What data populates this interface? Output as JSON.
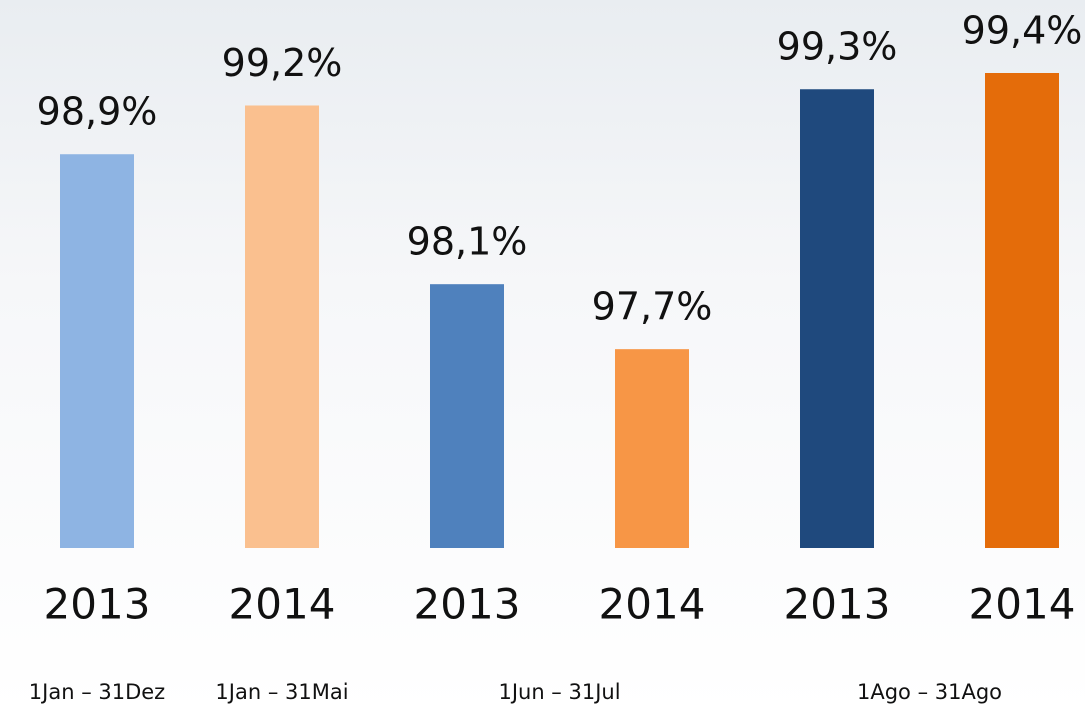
{
  "chart_data": {
    "type": "bar",
    "groups": [
      {
        "label": "1Jan – 31Dez",
        "bars": [
          {
            "category": "2013",
            "value": 98.9,
            "value_label": "98,9%",
            "color": "#8eb4e3"
          }
        ]
      },
      {
        "label": "1Jan – 31Mai",
        "bars": [
          {
            "category": "2014",
            "value": 99.2,
            "value_label": "99,2%",
            "color": "#fac08f"
          }
        ]
      },
      {
        "label": "1Jun – 31Jul",
        "bars": [
          {
            "category": "2013",
            "value": 98.1,
            "value_label": "98,1%",
            "color": "#4f81bd"
          },
          {
            "category": "2014",
            "value": 97.7,
            "value_label": "97,7%",
            "color": "#f79646"
          }
        ]
      },
      {
        "label": "1Ago – 31Ago",
        "bars": [
          {
            "category": "2013",
            "value": 99.3,
            "value_label": "99,3%",
            "color": "#1f497d"
          },
          {
            "category": "2014",
            "value": 99.4,
            "value_label": "99,4%",
            "color": "#e46c0a"
          }
        ]
      }
    ]
  }
}
